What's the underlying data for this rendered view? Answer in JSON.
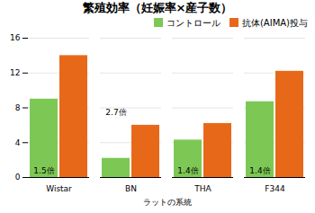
{
  "chart_data": {
    "type": "bar",
    "title": "繁殖効率（妊娠率×産子数）",
    "xlabel": "ラットの系統",
    "categories": [
      "Wistar",
      "BN",
      "THA",
      "F344"
    ],
    "series": [
      {
        "name": "コントロール",
        "color": "#7DC855",
        "values": [
          9.0,
          2.2,
          4.3,
          8.7
        ]
      },
      {
        "name": "抗体(AIMA)投与",
        "color": "#E8681A",
        "values": [
          14.0,
          6.0,
          6.2,
          12.2
        ]
      }
    ],
    "annotations": [
      {
        "text": "1.5倍",
        "category": "Wistar",
        "y": 0.5
      },
      {
        "text": "2.7倍",
        "category": "BN",
        "y": 7.2
      },
      {
        "text": "1.4倍",
        "category": "THA",
        "y": 0.5
      },
      {
        "text": "1.4倍",
        "category": "F344",
        "y": 0.5
      }
    ],
    "ylim": [
      0,
      16
    ],
    "yticks": [
      0,
      4,
      8,
      12,
      16
    ],
    "grid": true,
    "legend": "upper right"
  }
}
